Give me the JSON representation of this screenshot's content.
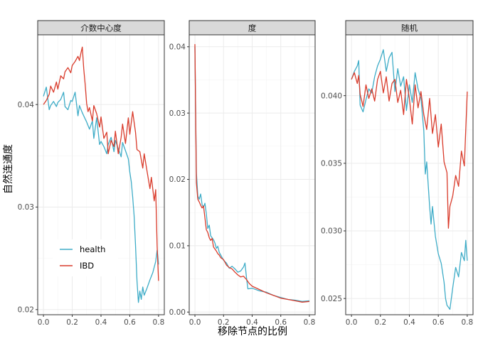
{
  "chart_data": {
    "type": "line",
    "xlabel": "移除节点的比例",
    "ylabel": "自然连通度",
    "legend": {
      "position": "bottom-left-inside-first-panel",
      "entries": [
        {
          "name": "health",
          "color": "#3eacc7"
        },
        {
          "name": "IBD",
          "color": "#d93b2b"
        }
      ]
    },
    "panels": [
      {
        "title": "介数中心度",
        "xlim": [
          -0.04,
          0.84
        ],
        "ylim": [
          0.0195,
          0.0468
        ],
        "xticks": [
          0.0,
          0.2,
          0.4,
          0.6,
          0.8
        ],
        "xtick_labels": [
          "0.0",
          "0.2",
          "0.4",
          "0.6",
          "0.8"
        ],
        "yticks": [
          0.02,
          0.03,
          0.04
        ],
        "ytick_labels": [
          "0.02",
          "0.03",
          "0.04"
        ],
        "series": [
          {
            "name": "health",
            "color": "#3eacc7",
            "x": [
              0.0,
              0.02,
              0.04,
              0.05,
              0.07,
              0.09,
              0.1,
              0.12,
              0.14,
              0.15,
              0.17,
              0.19,
              0.2,
              0.22,
              0.24,
              0.25,
              0.27,
              0.29,
              0.3,
              0.32,
              0.34,
              0.35,
              0.37,
              0.39,
              0.4,
              0.42,
              0.44,
              0.45,
              0.47,
              0.49,
              0.5,
              0.52,
              0.54,
              0.55,
              0.57,
              0.59,
              0.6,
              0.61,
              0.62,
              0.63,
              0.64,
              0.65,
              0.66,
              0.67,
              0.68,
              0.69,
              0.7,
              0.72,
              0.74,
              0.76,
              0.78,
              0.79,
              0.8
            ],
            "y": [
              0.0408,
              0.0417,
              0.0395,
              0.0399,
              0.0403,
              0.0398,
              0.0402,
              0.0405,
              0.0412,
              0.0398,
              0.0395,
              0.0404,
              0.0403,
              0.0412,
              0.0389,
              0.0399,
              0.0392,
              0.0386,
              0.0383,
              0.0376,
              0.0384,
              0.0367,
              0.0387,
              0.0361,
              0.0364,
              0.0359,
              0.0352,
              0.0361,
              0.0368,
              0.0354,
              0.0365,
              0.0357,
              0.0349,
              0.0363,
              0.0355,
              0.0347,
              0.0334,
              0.0325,
              0.031,
              0.0292,
              0.0263,
              0.0228,
              0.0207,
              0.0218,
              0.021,
              0.0222,
              0.0214,
              0.0221,
              0.0229,
              0.0236,
              0.0247,
              0.0258,
              0.0244
            ]
          },
          {
            "name": "IBD",
            "color": "#d93b2b",
            "x": [
              0.0,
              0.02,
              0.04,
              0.05,
              0.07,
              0.09,
              0.1,
              0.12,
              0.14,
              0.15,
              0.17,
              0.19,
              0.2,
              0.22,
              0.24,
              0.25,
              0.26,
              0.27,
              0.28,
              0.29,
              0.3,
              0.31,
              0.32,
              0.34,
              0.35,
              0.37,
              0.39,
              0.4,
              0.42,
              0.44,
              0.45,
              0.47,
              0.49,
              0.5,
              0.52,
              0.54,
              0.55,
              0.57,
              0.59,
              0.6,
              0.62,
              0.64,
              0.65,
              0.67,
              0.69,
              0.7,
              0.72,
              0.74,
              0.75,
              0.77,
              0.78,
              0.79,
              0.8
            ],
            "y": [
              0.04,
              0.0404,
              0.041,
              0.0418,
              0.0412,
              0.0422,
              0.0415,
              0.0428,
              0.0425,
              0.0432,
              0.0436,
              0.0431,
              0.0438,
              0.0442,
              0.0447,
              0.0443,
              0.045,
              0.0456,
              0.0435,
              0.042,
              0.0401,
              0.0393,
              0.0397,
              0.0384,
              0.0399,
              0.0391,
              0.0378,
              0.0388,
              0.0367,
              0.0373,
              0.0352,
              0.0365,
              0.0359,
              0.0374,
              0.0352,
              0.0368,
              0.0381,
              0.0362,
              0.0387,
              0.0371,
              0.0393,
              0.0373,
              0.0356,
              0.0354,
              0.0338,
              0.0352,
              0.0335,
              0.0318,
              0.0329,
              0.0306,
              0.0317,
              0.0262,
              0.0228
            ]
          }
        ]
      },
      {
        "title": "度",
        "xlim": [
          -0.04,
          0.84
        ],
        "ylim": [
          -0.0004,
          0.0418
        ],
        "xticks": [
          0.0,
          0.2,
          0.4,
          0.6,
          0.8
        ],
        "xtick_labels": [
          "0.0",
          "0.2",
          "0.4",
          "0.6",
          "0.8"
        ],
        "yticks": [
          0.0,
          0.01,
          0.02,
          0.03,
          0.04
        ],
        "ytick_labels": [
          "0.00",
          "0.01",
          "0.02",
          "0.03",
          "0.04"
        ],
        "series": [
          {
            "name": "health",
            "color": "#3eacc7",
            "x": [
              0.0,
              0.01,
              0.02,
              0.03,
              0.04,
              0.05,
              0.06,
              0.07,
              0.08,
              0.09,
              0.1,
              0.11,
              0.12,
              0.13,
              0.14,
              0.15,
              0.16,
              0.17,
              0.18,
              0.2,
              0.22,
              0.24,
              0.26,
              0.28,
              0.3,
              0.32,
              0.34,
              0.35,
              0.36,
              0.37,
              0.4,
              0.45,
              0.5,
              0.55,
              0.6,
              0.65,
              0.7,
              0.75,
              0.8
            ],
            "y": [
              0.04,
              0.021,
              0.0175,
              0.017,
              0.0178,
              0.0162,
              0.0158,
              0.0164,
              0.0148,
              0.0126,
              0.0131,
              0.0115,
              0.0112,
              0.0109,
              0.0104,
              0.0096,
              0.0099,
              0.009,
              0.0086,
              0.0078,
              0.0074,
              0.0066,
              0.0069,
              0.0065,
              0.006,
              0.0062,
              0.0068,
              0.0074,
              0.0052,
              0.0035,
              0.0036,
              0.0032,
              0.003,
              0.0025,
              0.0022,
              0.0019,
              0.0018,
              0.0016,
              0.0017
            ]
          },
          {
            "name": "IBD",
            "color": "#d93b2b",
            "x": [
              0.0,
              0.01,
              0.02,
              0.03,
              0.04,
              0.05,
              0.06,
              0.07,
              0.08,
              0.09,
              0.1,
              0.11,
              0.12,
              0.13,
              0.14,
              0.15,
              0.16,
              0.17,
              0.18,
              0.2,
              0.22,
              0.24,
              0.26,
              0.28,
              0.3,
              0.32,
              0.34,
              0.36,
              0.38,
              0.4,
              0.45,
              0.5,
              0.55,
              0.6,
              0.65,
              0.7,
              0.75,
              0.8
            ],
            "y": [
              0.0404,
              0.0195,
              0.017,
              0.0166,
              0.0161,
              0.0157,
              0.016,
              0.0142,
              0.0124,
              0.012,
              0.0112,
              0.0108,
              0.0111,
              0.0098,
              0.0095,
              0.0092,
              0.0088,
              0.0086,
              0.0082,
              0.0079,
              0.0071,
              0.0067,
              0.0065,
              0.006,
              0.0056,
              0.0053,
              0.0054,
              0.0049,
              0.0043,
              0.0039,
              0.0034,
              0.0029,
              0.0025,
              0.0021,
              0.0019,
              0.0017,
              0.0015,
              0.0016
            ]
          }
        ]
      },
      {
        "title": "随机",
        "xlim": [
          -0.04,
          0.84
        ],
        "ylim": [
          0.0238,
          0.0445
        ],
        "xticks": [
          0.0,
          0.2,
          0.4,
          0.6,
          0.8
        ],
        "xtick_labels": [
          "0.0",
          "0.2",
          "0.4",
          "0.6",
          "0.8"
        ],
        "yticks": [
          0.025,
          0.03,
          0.035,
          0.04
        ],
        "ytick_labels": [
          "0.025",
          "0.030",
          "0.035",
          "0.040"
        ],
        "series": [
          {
            "name": "health",
            "color": "#3eacc7",
            "x": [
              0.0,
              0.02,
              0.04,
              0.05,
              0.06,
              0.08,
              0.1,
              0.12,
              0.14,
              0.16,
              0.18,
              0.2,
              0.22,
              0.24,
              0.26,
              0.28,
              0.3,
              0.32,
              0.34,
              0.36,
              0.38,
              0.4,
              0.42,
              0.44,
              0.46,
              0.48,
              0.5,
              0.51,
              0.52,
              0.54,
              0.55,
              0.56,
              0.58,
              0.6,
              0.62,
              0.64,
              0.65,
              0.66,
              0.68,
              0.7,
              0.72,
              0.74,
              0.76,
              0.78,
              0.79,
              0.8
            ],
            "y": [
              0.0412,
              0.0418,
              0.0422,
              0.0426,
              0.0393,
              0.0388,
              0.0397,
              0.0405,
              0.0402,
              0.0414,
              0.0422,
              0.0427,
              0.0434,
              0.0418,
              0.0428,
              0.0432,
              0.0403,
              0.042,
              0.0407,
              0.0414,
              0.0389,
              0.0408,
              0.0395,
              0.0417,
              0.0405,
              0.0398,
              0.0374,
              0.0342,
              0.0351,
              0.0318,
              0.0305,
              0.0318,
              0.0296,
              0.0283,
              0.0276,
              0.0262,
              0.025,
              0.0245,
              0.0242,
              0.0258,
              0.0273,
              0.0266,
              0.0284,
              0.0278,
              0.0293,
              0.0278
            ]
          },
          {
            "name": "IBD",
            "color": "#d93b2b",
            "x": [
              0.0,
              0.02,
              0.04,
              0.05,
              0.06,
              0.08,
              0.1,
              0.12,
              0.14,
              0.16,
              0.18,
              0.2,
              0.22,
              0.24,
              0.26,
              0.28,
              0.3,
              0.32,
              0.34,
              0.36,
              0.38,
              0.4,
              0.42,
              0.44,
              0.46,
              0.48,
              0.5,
              0.52,
              0.54,
              0.56,
              0.58,
              0.6,
              0.62,
              0.64,
              0.66,
              0.67,
              0.68,
              0.7,
              0.72,
              0.74,
              0.76,
              0.78,
              0.8
            ],
            "y": [
              0.0412,
              0.0417,
              0.0409,
              0.0415,
              0.0401,
              0.0392,
              0.0408,
              0.0398,
              0.0405,
              0.0396,
              0.0412,
              0.0418,
              0.0402,
              0.0414,
              0.0396,
              0.0409,
              0.0412,
              0.0395,
              0.0404,
              0.0386,
              0.0412,
              0.0398,
              0.0379,
              0.0408,
              0.0391,
              0.0403,
              0.0386,
              0.0375,
              0.0398,
              0.0372,
              0.0386,
              0.0362,
              0.0379,
              0.0351,
              0.0343,
              0.0302,
              0.0318,
              0.0326,
              0.0341,
              0.0333,
              0.0359,
              0.0348,
              0.0403
            ]
          }
        ]
      }
    ]
  }
}
